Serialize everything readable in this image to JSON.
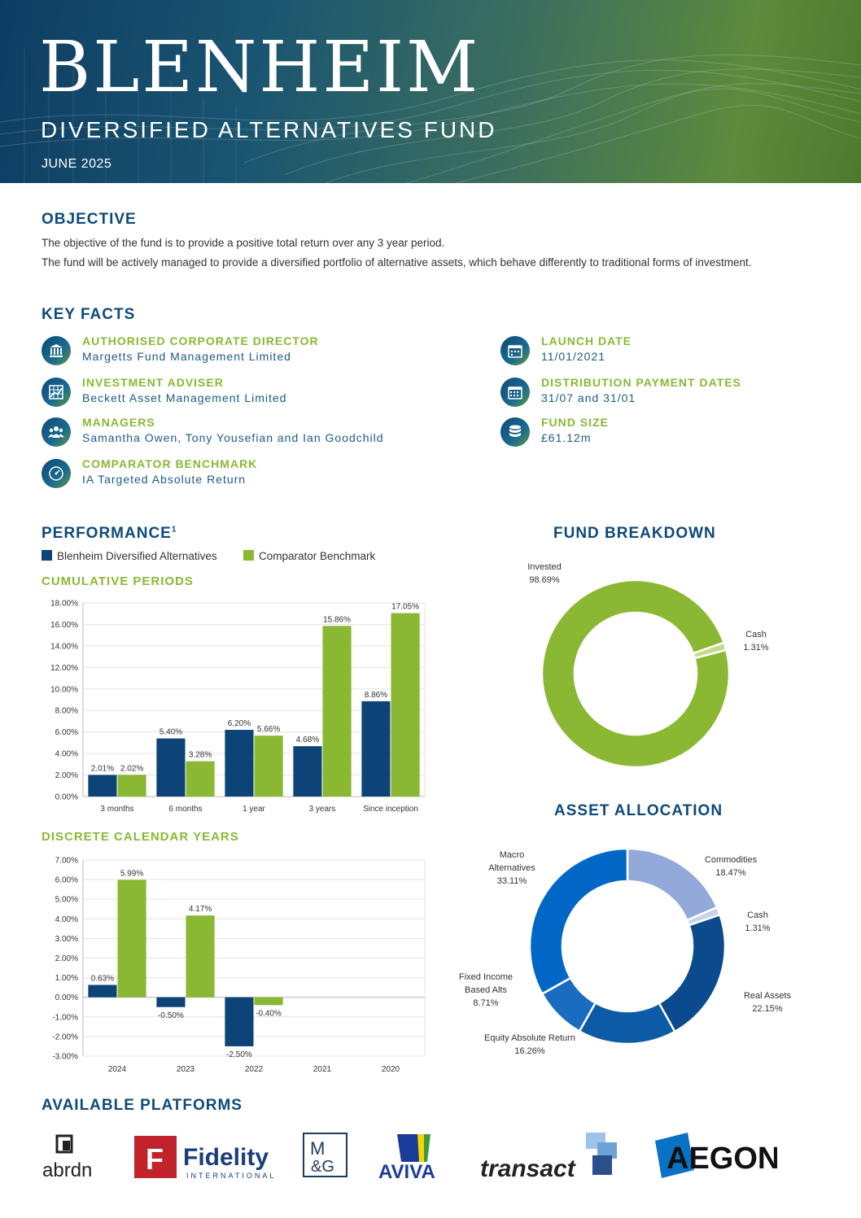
{
  "header": {
    "title": "BLENHEIM",
    "subtitle": "DIVERSIFIED ALTERNATIVES FUND",
    "date": "JUNE 2025"
  },
  "objective": {
    "heading": "OBJECTIVE",
    "line1": "The objective of the fund is to provide a positive total return over any 3 year period.",
    "line2": "The fund will be actively managed to provide a diversified portfolio of alternative assets, which behave differently to traditional forms of investment."
  },
  "key_facts": {
    "heading": "KEY FACTS",
    "items": [
      {
        "label": "AUTHORISED CORPORATE DIRECTOR",
        "value": "Margetts Fund Management Limited",
        "icon": "bank-icon"
      },
      {
        "label": "INVESTMENT ADVISER",
        "value": "Beckett Asset Management Limited",
        "icon": "chart-grid-icon"
      },
      {
        "label": "MANAGERS",
        "value": "Samantha Owen, Tony Yousefian and Ian Goodchild",
        "icon": "people-icon"
      },
      {
        "label": "COMPARATOR BENCHMARK",
        "value": "IA Targeted Absolute Return",
        "icon": "gauge-icon"
      },
      {
        "label": "LAUNCH DATE",
        "value": "11/01/2021",
        "icon": "calendar-icon"
      },
      {
        "label": "DISTRIBUTION PAYMENT DATES",
        "value": "31/07 and 31/01",
        "icon": "calendar-grid-icon"
      },
      {
        "label": "FUND SIZE",
        "value": "£61.12m",
        "icon": "coins-icon"
      }
    ]
  },
  "performance": {
    "heading": "PERFORMANCE",
    "footnote_mark": "1",
    "legend": [
      "Blenheim Diversified Alternatives",
      "Comparator Benchmark"
    ],
    "colors": {
      "fund": "#0d4478",
      "benchmark": "#8ab833"
    },
    "cumulative_heading": "CUMULATIVE PERIODS",
    "discrete_heading": "DISCRETE CALENDAR YEARS"
  },
  "fund_breakdown": {
    "heading": "FUND BREAKDOWN"
  },
  "asset_allocation": {
    "heading": "ASSET ALLOCATION"
  },
  "platforms": {
    "heading": "AVAILABLE PLATFORMS",
    "names": [
      "abrdn",
      "Fidelity",
      "INTERNATIONAL",
      "M",
      "&G",
      "AVIVA",
      "transact",
      "AEGON"
    ]
  },
  "chart_data": [
    {
      "type": "bar",
      "title": "CUMULATIVE PERIODS",
      "categories": [
        "3 months",
        "6 months",
        "1 year",
        "3 years",
        "Since inception"
      ],
      "series": [
        {
          "name": "Blenheim Diversified Alternatives",
          "values": [
            2.01,
            5.4,
            6.2,
            4.68,
            8.86
          ],
          "labels": [
            "2.01%",
            "5.40%",
            "6.20%",
            "4.68%",
            "8.86%"
          ]
        },
        {
          "name": "Comparator Benchmark",
          "values": [
            2.02,
            3.28,
            5.66,
            15.86,
            17.05
          ],
          "labels": [
            "2.02%",
            "3.28%",
            "5.66%",
            "15.86%",
            "17.05%"
          ]
        }
      ],
      "ylim": [
        0,
        18
      ],
      "ytick_labels": [
        "18.00%",
        "16.00%",
        "14.00%",
        "12.00%",
        "10.00%",
        "8.00%",
        "6.00%",
        "4.00%",
        "2.00%",
        "0.00%"
      ],
      "grid": true
    },
    {
      "type": "bar",
      "title": "DISCRETE CALENDAR YEARS",
      "categories": [
        "2024",
        "2023",
        "2022",
        "2021",
        "2020"
      ],
      "series": [
        {
          "name": "Blenheim Diversified Alternatives",
          "values": [
            0.63,
            -0.5,
            -2.5,
            null,
            null
          ],
          "labels": [
            "0.63%",
            "-0.50%",
            "-2.50%",
            "",
            ""
          ]
        },
        {
          "name": "Comparator Benchmark",
          "values": [
            5.99,
            4.17,
            -0.4,
            null,
            null
          ],
          "labels": [
            "5.99%",
            "4.17%",
            "-0.40%",
            "",
            ""
          ]
        }
      ],
      "ylim": [
        -3,
        7
      ],
      "ytick_labels": [
        "7.00%",
        "6.00%",
        "5.00%",
        "4.00%",
        "3.00%",
        "2.00%",
        "1.00%",
        "0.00%",
        "-1.00%",
        "-2.00%",
        "-3.00%"
      ],
      "grid": true
    },
    {
      "type": "pie",
      "title": "FUND BREAKDOWN",
      "slices": [
        {
          "label": "Invested",
          "value": 98.69,
          "text": "98.69%",
          "color": "#8ab833"
        },
        {
          "label": "Cash",
          "value": 1.31,
          "text": "1.31%",
          "color": "#c3dc8a"
        }
      ]
    },
    {
      "type": "pie",
      "title": "ASSET ALLOCATION",
      "slices": [
        {
          "label": "Commodities",
          "value": 18.47,
          "text": "18.47%",
          "color": "#93a9d9"
        },
        {
          "label": "Cash",
          "value": 1.31,
          "text": "1.31%",
          "color": "#c7d2ee"
        },
        {
          "label": "Real Assets",
          "value": 22.15,
          "text": "22.15%",
          "color": "#0b4a8c"
        },
        {
          "label": "Equity Absolute Return",
          "value": 16.26,
          "text": "16.26%",
          "color": "#0d5ba6"
        },
        {
          "label": "Fixed Income Based Alts",
          "value": 8.71,
          "text": "8.71%",
          "color": "#1a6cc0"
        },
        {
          "label": "Macro Alternatives",
          "value": 33.11,
          "text": "33.11%",
          "color": "#0067c6"
        }
      ]
    }
  ]
}
